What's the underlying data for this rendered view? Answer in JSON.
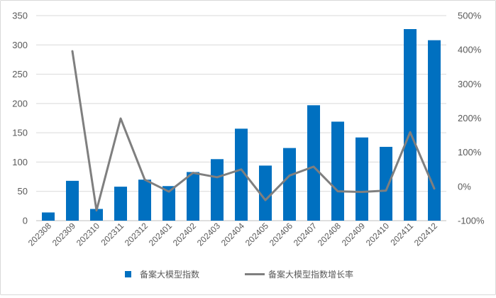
{
  "chart_data": {
    "type": "bar",
    "categories": [
      "202308",
      "202309",
      "202310",
      "202311",
      "202312",
      "202401",
      "202402",
      "202403",
      "202404",
      "202405",
      "202406",
      "202407",
      "202408",
      "202409",
      "202410",
      "202411",
      "202412"
    ],
    "series": [
      {
        "name": "备案大模型指数",
        "type": "bar",
        "axis": "left",
        "color": "#0070C0",
        "values": [
          14,
          68,
          20,
          58,
          70,
          59,
          83,
          105,
          157,
          94,
          124,
          197,
          169,
          142,
          126,
          327,
          308
        ]
      },
      {
        "name": "备案大模型指数增长率",
        "type": "line",
        "axis": "right",
        "color": "#7F7F7F",
        "values": [
          null,
          396,
          -70,
          199,
          20,
          -15,
          40,
          27,
          50,
          -40,
          32,
          58,
          -14,
          -16,
          -12,
          159,
          -6
        ]
      }
    ],
    "y_left": {
      "min": 0,
      "max": 350,
      "ticks": [
        "0",
        "50",
        "100",
        "150",
        "200",
        "250",
        "300",
        "350"
      ]
    },
    "y_right": {
      "min": -100,
      "max": 500,
      "ticks": [
        "-100%",
        "0%",
        "100%",
        "200%",
        "300%",
        "400%",
        "500%"
      ]
    },
    "grid": true,
    "legend_position": "bottom"
  }
}
